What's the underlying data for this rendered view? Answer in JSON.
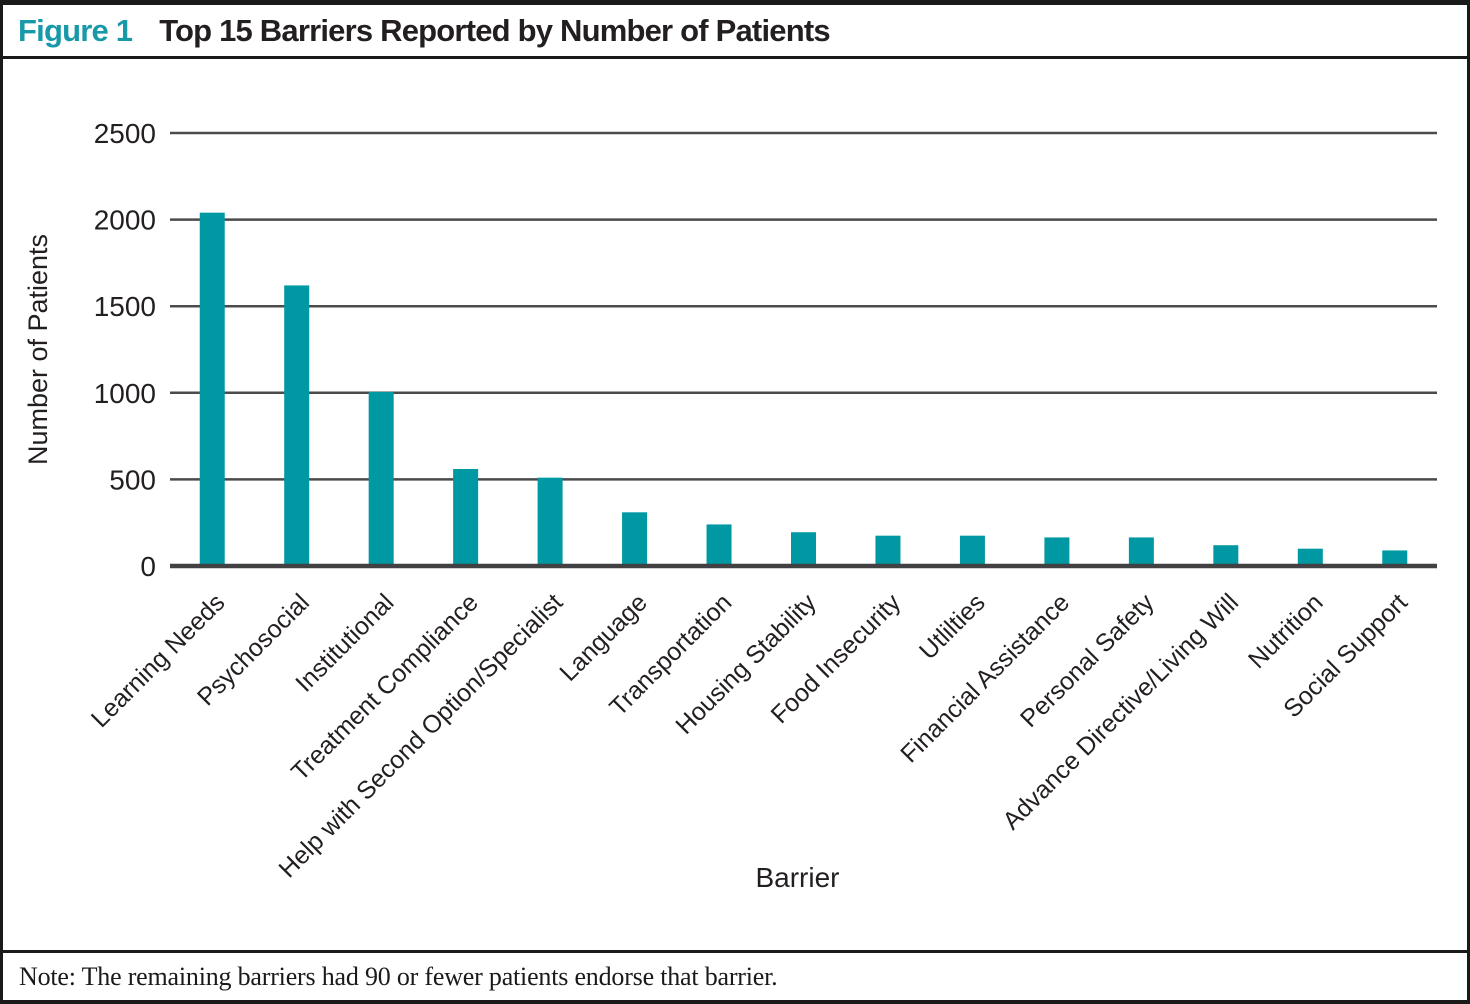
{
  "header": {
    "figure_label": "Figure 1",
    "title": "Top 15 Barriers Reported by Number of Patients"
  },
  "note": {
    "text": "Note: The remaining barriers had 90 or fewer patients endorse that barrier."
  },
  "colors": {
    "bar": "#0099a3",
    "accent": "#1899a9",
    "grid": "#4b4b4b",
    "axis": "#414042",
    "text": "#231f20"
  },
  "chart_data": {
    "type": "bar",
    "title": "Top 15 Barriers Reported by Number of Patients",
    "xlabel": "Barrier",
    "ylabel": "Number of Patients",
    "ylim": [
      0,
      2500
    ],
    "yticks": [
      0,
      500,
      1000,
      1500,
      2000,
      2500
    ],
    "grid": true,
    "legend": false,
    "categories": [
      "Learning Needs",
      "Psychosocial",
      "Institutional",
      "Treatment Compliance",
      "Help with Second Option/Specialist",
      "Language",
      "Transportation",
      "Housing Stability",
      "Food Insecurity",
      "Utlilties",
      "Financial Assistance",
      "Personal Safety",
      "Advance Directive/Living Will",
      "Nutrition",
      "Social Support"
    ],
    "values": [
      2040,
      1620,
      1005,
      560,
      510,
      310,
      240,
      195,
      175,
      175,
      165,
      165,
      120,
      100,
      90
    ]
  }
}
